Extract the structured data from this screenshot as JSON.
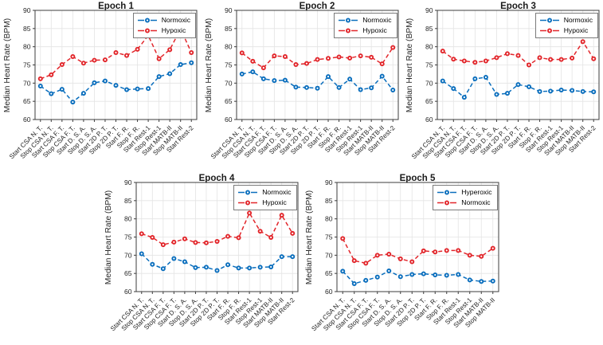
{
  "chart_data": [
    {
      "type": "line",
      "title": "Epoch 1",
      "ylabel": "Median Heart Rate (BPM)",
      "xlabel": "",
      "ylim": [
        60,
        90
      ],
      "yticks": [
        60,
        65,
        70,
        75,
        80,
        85,
        90
      ],
      "grid": true,
      "legend_position": "top-right-inside",
      "line_style": "dashed",
      "marker": "circle",
      "categories": [
        "Start CSA N. T.",
        "Stop CSA N. T.",
        "Start CSA F. T.",
        "Stop CSA F. T.",
        "Start D. S. A.",
        "Stop D. S. A.",
        "Start 2D P. T.",
        "Stop 2D P. T.",
        "Start F. R.",
        "Stop F. R.",
        "Start Rest-1",
        "Stop Rest-1",
        "Start MATB-II",
        "Stop MATB-II",
        "Start Rest-2"
      ],
      "series": [
        {
          "name": "Normoxic",
          "color": "#0a6ebd",
          "values": [
            69.2,
            67.1,
            68.3,
            64.8,
            67.2,
            70.1,
            70.6,
            69.4,
            68.2,
            68.4,
            68.5,
            71.8,
            72.6,
            75.1,
            75.6
          ]
        },
        {
          "name": "Hypoxic",
          "color": "#e2262b",
          "values": [
            71.2,
            72.3,
            75.1,
            77.3,
            75.5,
            76.3,
            76.4,
            78.4,
            77.6,
            79.3,
            83.1,
            76.7,
            79.2,
            84.9,
            78.4
          ]
        }
      ]
    },
    {
      "type": "line",
      "title": "Epoch 2",
      "ylabel": "Median Heart Rate (BPM)",
      "xlabel": "",
      "ylim": [
        60,
        90
      ],
      "yticks": [
        60,
        65,
        70,
        75,
        80,
        85,
        90
      ],
      "grid": true,
      "legend_position": "top-right-inside",
      "line_style": "dashed",
      "marker": "circle",
      "categories": [
        "Start CSA N. T.",
        "Stop CSA N. T.",
        "Start CSA F. T.",
        "Stop CSA F. T.",
        "Start D. S. A.",
        "Stop D. S. A.",
        "Start 2D P. T.",
        "Stop 2D P. T.",
        "Start F. R.",
        "Stop F. R.",
        "Start Rest-1",
        "Stop Rest-1",
        "Start MATB-II",
        "Stop MATB-II",
        "Start Rest-2"
      ],
      "series": [
        {
          "name": "Normoxic",
          "color": "#0a6ebd",
          "values": [
            72.5,
            73.1,
            71.2,
            70.7,
            70.8,
            68.9,
            68.8,
            68.6,
            71.8,
            68.8,
            71.1,
            68.2,
            68.7,
            71.9,
            68.1
          ]
        },
        {
          "name": "Hypoxic",
          "color": "#e2262b",
          "values": [
            78.3,
            76.0,
            74.2,
            77.5,
            77.3,
            75.1,
            75.4,
            76.5,
            76.8,
            77.2,
            76.9,
            77.5,
            77.1,
            75.3,
            79.8
          ]
        }
      ]
    },
    {
      "type": "line",
      "title": "Epoch 3",
      "ylabel": "Median Heart Rate (BPM)",
      "xlabel": "",
      "ylim": [
        60,
        90
      ],
      "yticks": [
        60,
        65,
        70,
        75,
        80,
        85,
        90
      ],
      "grid": true,
      "legend_position": "top-right-inside",
      "line_style": "dashed",
      "marker": "circle",
      "categories": [
        "Start CSA N. T.",
        "Stop CSA N. T.",
        "Start CSA F. T.",
        "Stop CSA F. T.",
        "Start D. S. A.",
        "Stop D. S. A.",
        "Start 2D P. T.",
        "Stop 2D P. T.",
        "Start F. R.",
        "Stop F. R.",
        "Start Rest-1",
        "Stop Rest-1",
        "Start MATB-II",
        "Stop MATB-II",
        "Start Rest-2"
      ],
      "series": [
        {
          "name": "Normoxic",
          "color": "#0a6ebd",
          "values": [
            70.6,
            68.5,
            66.1,
            71.2,
            71.6,
            66.9,
            67.2,
            69.6,
            69.0,
            67.7,
            67.8,
            68.1,
            68.0,
            67.7,
            67.6
          ]
        },
        {
          "name": "Hypoxic",
          "color": "#e2262b",
          "values": [
            78.8,
            76.6,
            76.1,
            75.7,
            76.1,
            77.0,
            78.1,
            77.6,
            75.0,
            77.0,
            76.5,
            76.5,
            76.9,
            81.4,
            76.7
          ]
        }
      ]
    },
    {
      "type": "line",
      "title": "Epoch 4",
      "ylabel": "Median Heart Rate (BPM)",
      "xlabel": "",
      "ylim": [
        60,
        90
      ],
      "yticks": [
        60,
        65,
        70,
        75,
        80,
        85,
        90
      ],
      "grid": true,
      "legend_position": "top-right-inside",
      "line_style": "dashed",
      "marker": "circle",
      "categories": [
        "Start CSA N. T.",
        "Stop CSA N. T.",
        "Start CSA F. T.",
        "Stop CSA F. T.",
        "Start D. S. A.",
        "Stop D. S. A.",
        "Start 2D P. T.",
        "Stop 2D P. T.",
        "Start F. R.",
        "Stop F. R.",
        "Start Rest-1",
        "Stop Rest-1",
        "Start MATB-II",
        "Stop MATB-II",
        "Start Rest-2"
      ],
      "series": [
        {
          "name": "Normoxic",
          "color": "#0a6ebd",
          "values": [
            70.4,
            67.5,
            66.3,
            69.1,
            68.2,
            66.6,
            66.7,
            65.8,
            67.4,
            66.5,
            66.5,
            66.7,
            66.8,
            69.6,
            69.6
          ]
        },
        {
          "name": "Hypoxic",
          "color": "#e2262b",
          "values": [
            75.9,
            74.9,
            72.9,
            73.6,
            74.5,
            73.5,
            73.4,
            73.8,
            75.2,
            74.8,
            81.6,
            76.6,
            74.9,
            81.0,
            76.0
          ]
        }
      ]
    },
    {
      "type": "line",
      "title": "Epoch 5",
      "ylabel": "Median Heart Rate (BPM)",
      "xlabel": "",
      "ylim": [
        60,
        90
      ],
      "yticks": [
        60,
        65,
        70,
        75,
        80,
        85,
        90
      ],
      "grid": true,
      "legend_position": "top-right-inside",
      "line_style": "dashed",
      "marker": "circle",
      "categories": [
        "Start CSA N. T.",
        "Stop CSA N. T.",
        "Start CSA F. T.",
        "Stop CSA F. T.",
        "Start D. S. A.",
        "Stop D. S. A.",
        "Start 2D P. T.",
        "Stop 2D P. T.",
        "Start F. R.",
        "Stop F. R.",
        "Start Rest-1",
        "Stop Rest-1",
        "Start MATB-II",
        "Stop MATB-II"
      ],
      "series": [
        {
          "name": "Hyperoxic",
          "color": "#0a6ebd",
          "values": [
            65.6,
            62.2,
            63.1,
            64.0,
            65.7,
            64.1,
            64.7,
            64.9,
            64.6,
            64.5,
            64.7,
            63.2,
            62.8,
            62.9
          ]
        },
        {
          "name": "Normoxic",
          "color": "#e2262b",
          "values": [
            74.6,
            68.5,
            67.8,
            70.0,
            70.3,
            69.0,
            68.2,
            71.2,
            70.9,
            71.3,
            71.3,
            70.0,
            69.7,
            71.9
          ]
        }
      ]
    }
  ]
}
